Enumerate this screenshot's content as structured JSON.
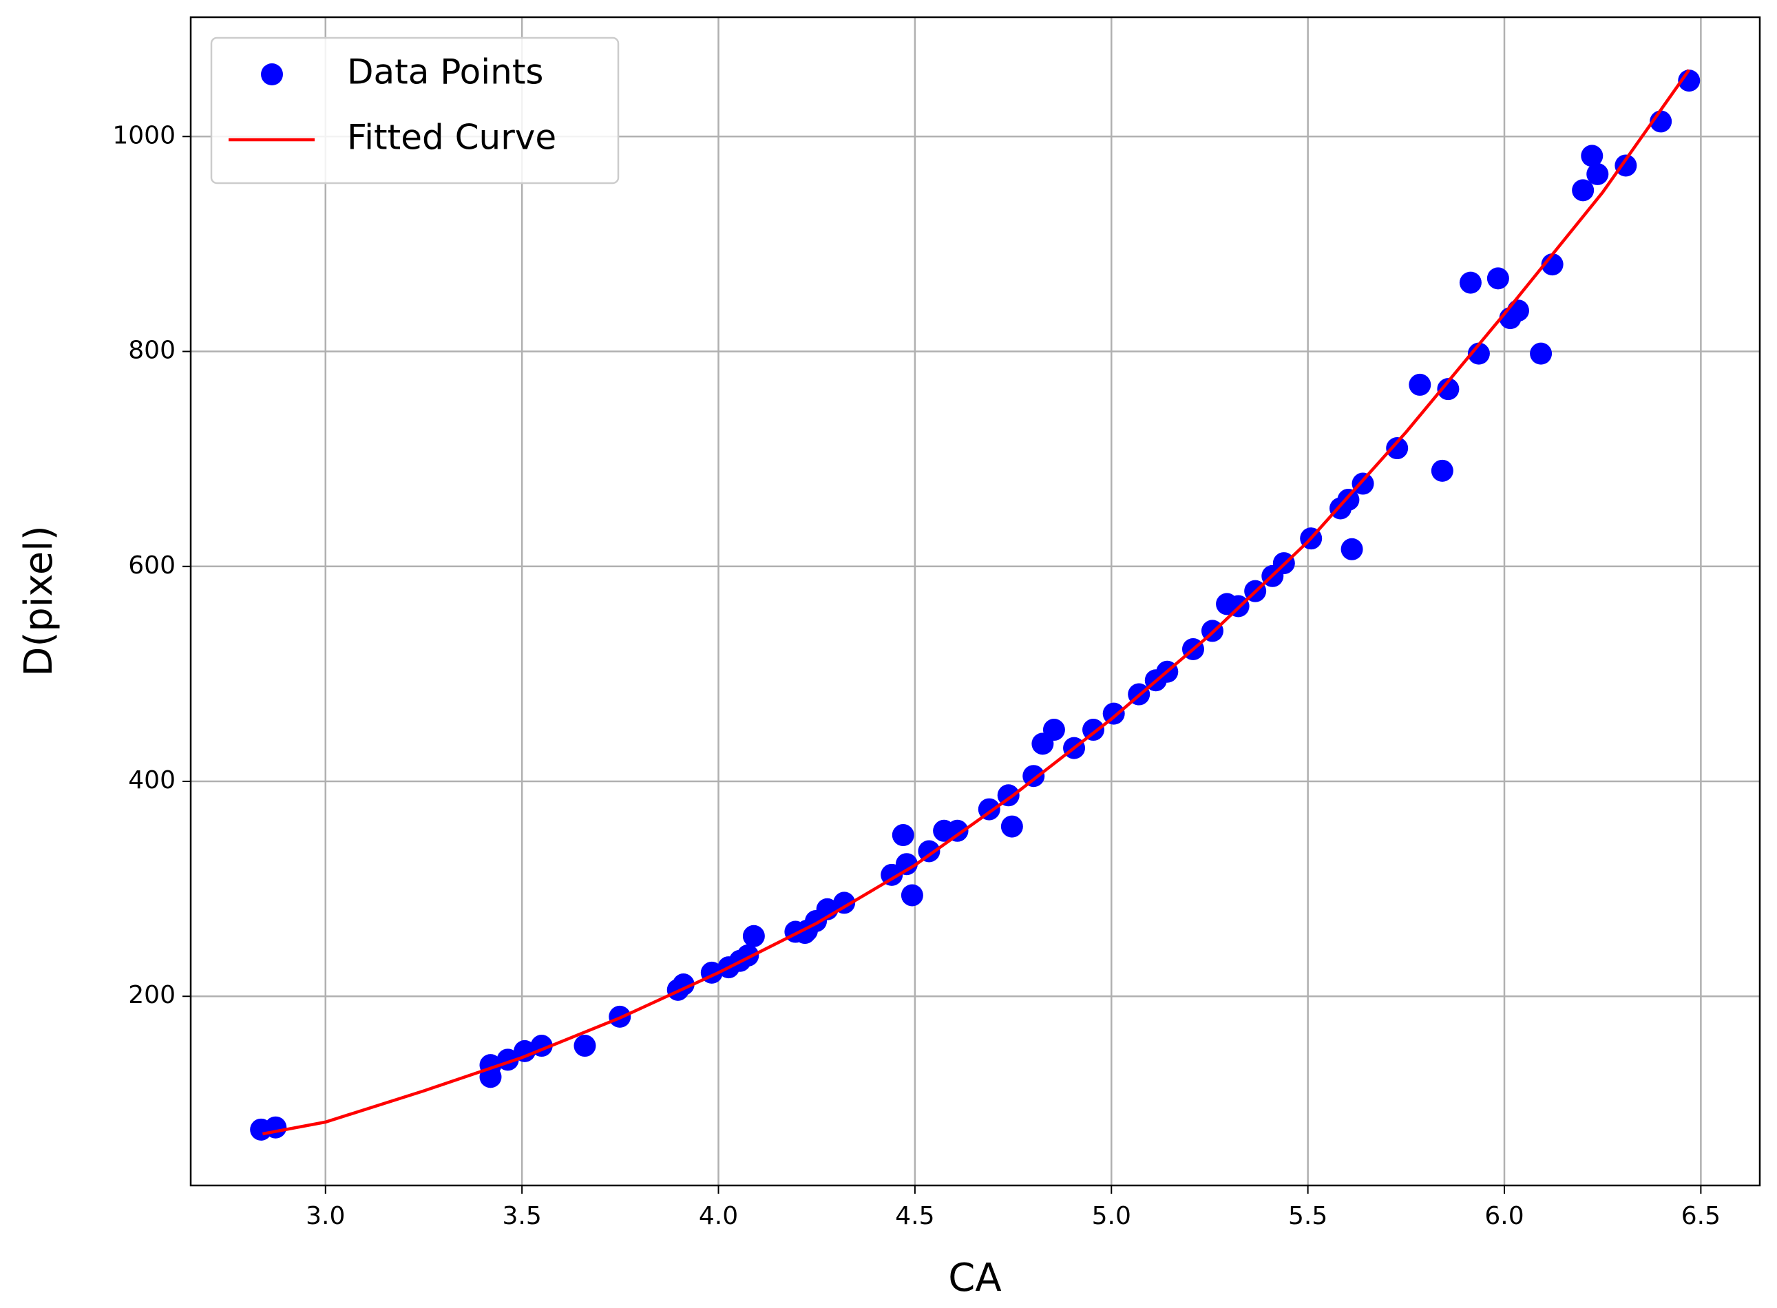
{
  "chart_data": {
    "type": "scatter",
    "xlabel": "CA",
    "ylabel": "D(pixel)",
    "xlim": [
      2.657,
      6.65
    ],
    "ylim": [
      24,
      1111
    ],
    "xticks": [
      {
        "value": 3,
        "label": "3.0"
      },
      {
        "value": 3.5,
        "label": "3.5"
      },
      {
        "value": 4,
        "label": "4.0"
      },
      {
        "value": 4.5,
        "label": "4.5"
      },
      {
        "value": 5,
        "label": "5.0"
      },
      {
        "value": 5.5,
        "label": "5.5"
      },
      {
        "value": 6,
        "label": "6.0"
      },
      {
        "value": 6.5,
        "label": "6.5"
      }
    ],
    "yticks": [
      200,
      400,
      600,
      800,
      1000
    ],
    "grid": true,
    "legend": "upper left",
    "series": [
      {
        "name": "Data Points",
        "type": "scatter",
        "color": "#0000ff",
        "x": [
          2.836,
          2.873,
          3.42,
          3.42,
          3.464,
          3.507,
          3.55,
          3.66,
          3.749,
          3.897,
          3.911,
          3.983,
          4.026,
          4.055,
          4.075,
          4.09,
          4.196,
          4.22,
          4.225,
          4.248,
          4.277,
          4.32,
          4.441,
          4.47,
          4.479,
          4.493,
          4.536,
          4.574,
          4.608,
          4.689,
          4.738,
          4.747,
          4.802,
          4.825,
          4.854,
          4.905,
          4.954,
          5.006,
          5.07,
          5.113,
          5.142,
          5.208,
          5.257,
          5.294,
          5.323,
          5.366,
          5.41,
          5.439,
          5.508,
          5.583,
          5.603,
          5.612,
          5.64,
          5.727,
          5.785,
          5.842,
          5.857,
          5.914,
          5.935,
          5.984,
          6.015,
          6.035,
          6.093,
          6.122,
          6.2,
          6.223,
          6.237,
          6.309,
          6.398,
          6.47
        ],
        "values": [
          76,
          78,
          136,
          125,
          141,
          149,
          154,
          154,
          181,
          206,
          211,
          222,
          227,
          233,
          238,
          256,
          260,
          259,
          261,
          270,
          281,
          287,
          313,
          350,
          323,
          294,
          335,
          354,
          354,
          374,
          387,
          358,
          405,
          435,
          448,
          431,
          448,
          463,
          481,
          494,
          502,
          523,
          540,
          565,
          563,
          577,
          591,
          603,
          626,
          654,
          662,
          616,
          677,
          710,
          769,
          689,
          765,
          864,
          798,
          868,
          831,
          838,
          798,
          881,
          950,
          982,
          965,
          973,
          1014,
          1052
        ]
      },
      {
        "name": "Fitted Curve",
        "type": "line",
        "color": "#ff0000",
        "x": [
          2.84,
          3.0,
          3.25,
          3.5,
          3.75,
          4.0,
          4.25,
          4.5,
          4.75,
          5.0,
          5.25,
          5.5,
          5.75,
          6.0,
          6.25,
          6.47
        ],
        "values": [
          72,
          83,
          112,
          143,
          180,
          222,
          268,
          322,
          387,
          458,
          536,
          623,
          725,
          835,
          948,
          1062
        ]
      }
    ]
  }
}
